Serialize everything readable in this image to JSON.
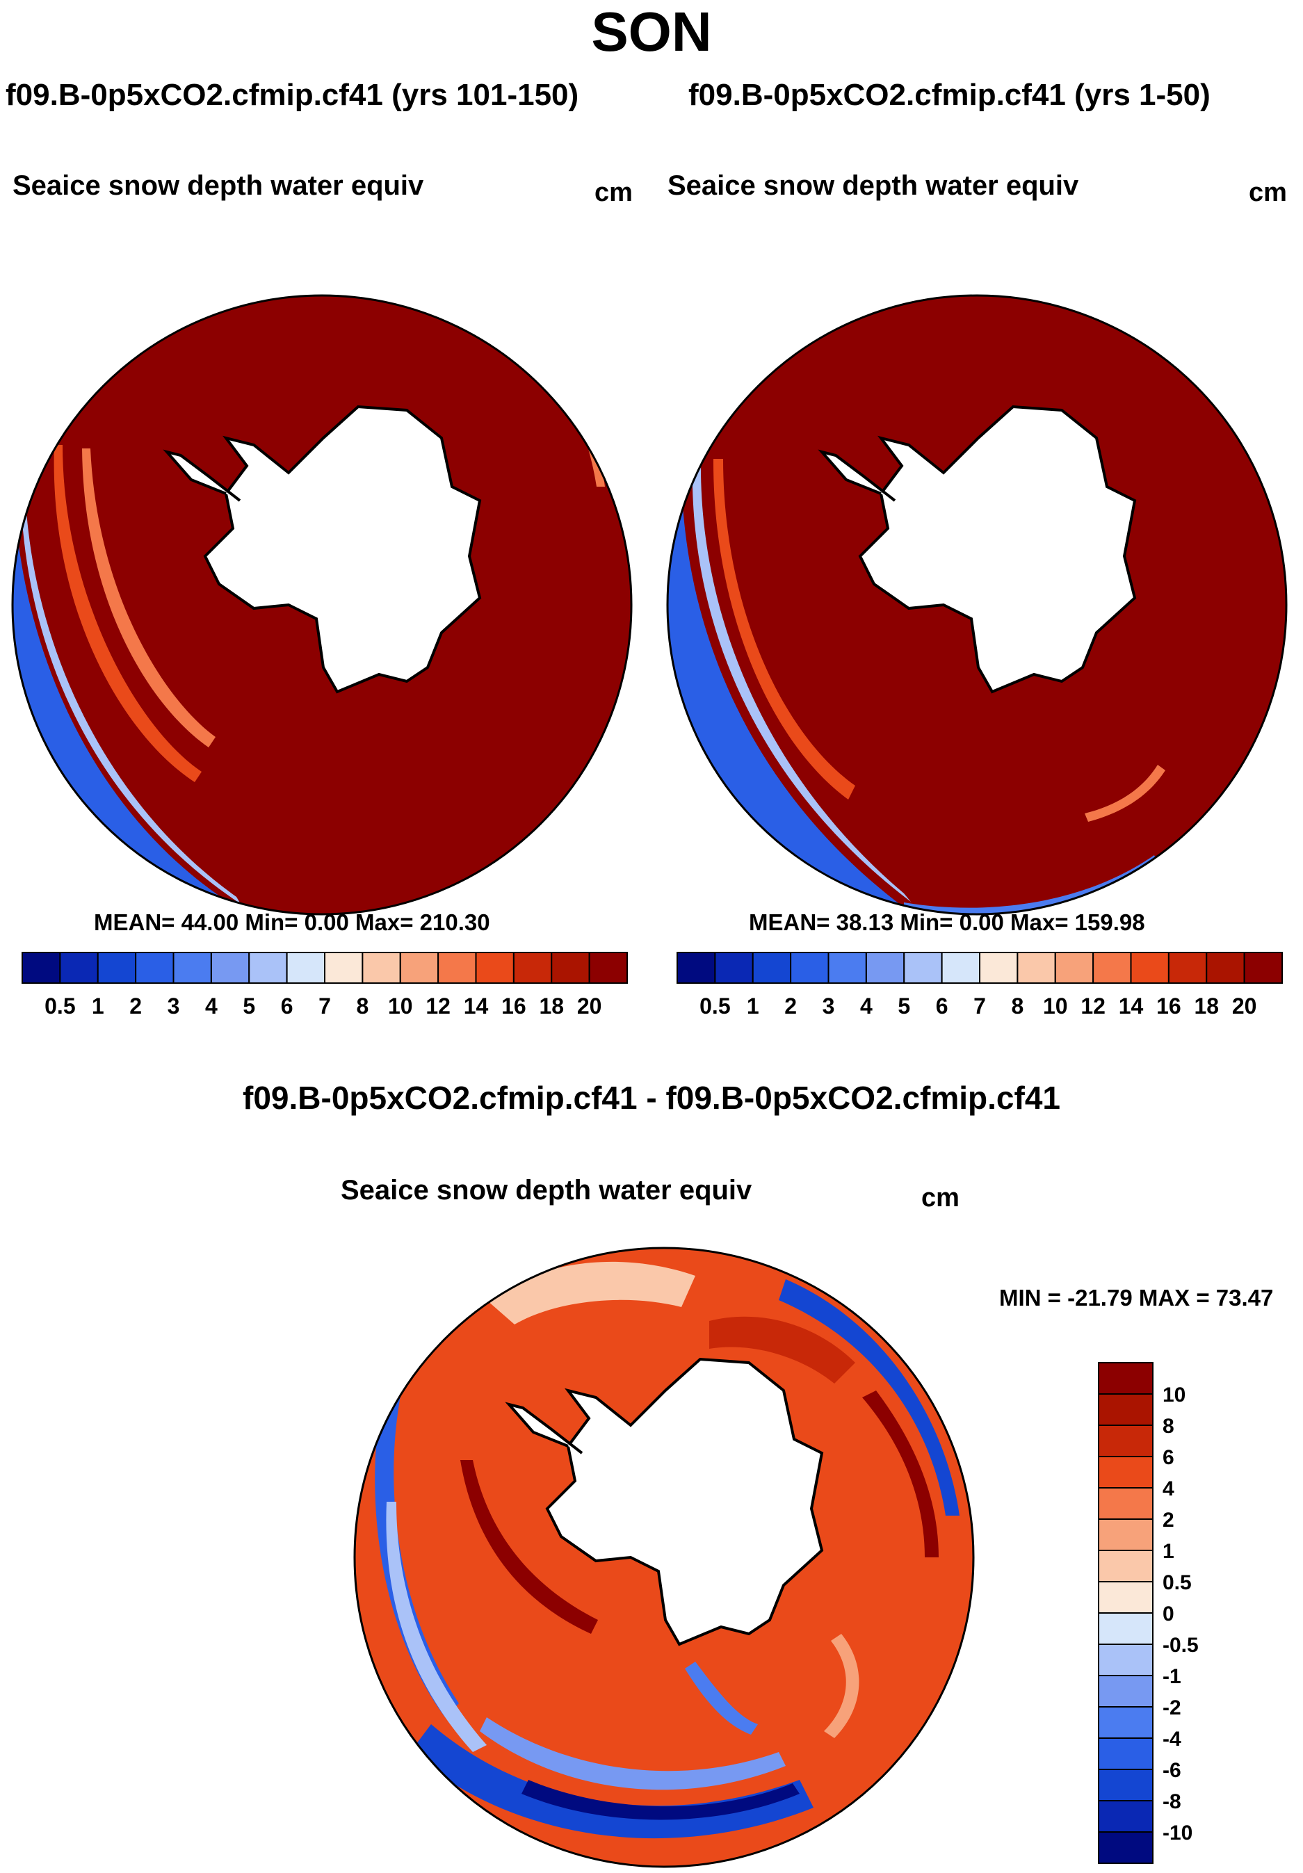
{
  "season": "SON",
  "panels": [
    {
      "case_title": "f09.B-0p5xCO2.cfmip.cf41 (yrs 101-150)",
      "variable": "Seaice snow depth water equiv",
      "units": "cm",
      "stats": "MEAN=  44.00  Min=   0.00  Max= 210.30"
    },
    {
      "case_title": "f09.B-0p5xCO2.cfmip.cf41 (yrs 1-50)",
      "variable": "Seaice snow depth water equiv",
      "units": "cm",
      "stats": "MEAN=  38.13  Min=   0.00  Max= 159.98"
    }
  ],
  "difference": {
    "title": "f09.B-0p5xCO2.cfmip.cf41 - f09.B-0p5xCO2.cfmip.cf41",
    "variable": "Seaice snow depth water equiv",
    "units": "cm",
    "minmax": "MIN = -21.79 MAX =  73.47"
  },
  "colorbar_abs": {
    "labels": [
      "0.5",
      "1",
      "2",
      "3",
      "4",
      "5",
      "6",
      "7",
      "8",
      "10",
      "12",
      "14",
      "16",
      "18",
      "20"
    ],
    "colors": [
      "#000a80",
      "#0a28b4",
      "#1446d2",
      "#2a5fe6",
      "#4b7cf0",
      "#7799f2",
      "#aac2f8",
      "#d6e6fa",
      "#fbe8d8",
      "#fac8aa",
      "#f7a27a",
      "#f4784a",
      "#ea4a1a",
      "#c82808",
      "#aa1400",
      "#8c0000"
    ]
  },
  "colorbar_diff": {
    "labels": [
      "10",
      "8",
      "6",
      "4",
      "2",
      "1",
      "0.5",
      "0",
      "-0.5",
      "-1",
      "-2",
      "-4",
      "-6",
      "-8",
      "-10"
    ],
    "colors": [
      "#8c0000",
      "#aa1400",
      "#c82808",
      "#ea4a1a",
      "#f4784a",
      "#f7a27a",
      "#fac8aa",
      "#fbe8d8",
      "#d6e6fa",
      "#aac2f8",
      "#7799f2",
      "#4b7cf0",
      "#2a5fe6",
      "#1446d2",
      "#0a28b4",
      "#000a80"
    ]
  }
}
